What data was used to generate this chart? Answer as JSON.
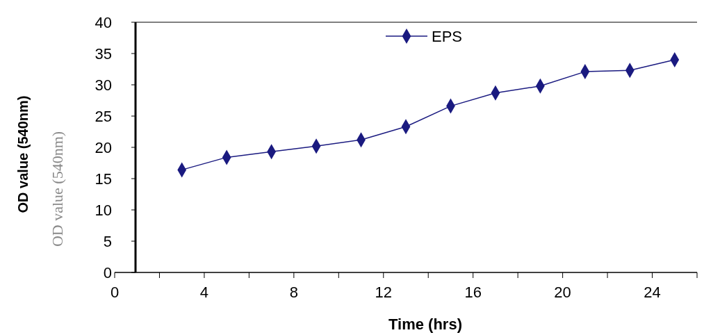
{
  "chart_data": {
    "type": "line",
    "xlabel": "Time (hrs)",
    "ylabel": "OD value (540nm)",
    "annotations": [
      "OD value (540nm)"
    ],
    "x": [
      3,
      5,
      7,
      9,
      11,
      13,
      15,
      17,
      19,
      21,
      23,
      25
    ],
    "series": [
      {
        "name": "EPS",
        "color": "#1a1a80",
        "values": [
          16.4,
          18.4,
          19.3,
          20.2,
          21.2,
          23.3,
          26.6,
          28.7,
          29.8,
          32.1,
          32.3,
          34.0
        ]
      }
    ],
    "xlim": [
      0,
      26
    ],
    "xticks": [
      0,
      {
        "value": 2,
        "label": null
      },
      4,
      {
        "value": 6,
        "label": null
      },
      8,
      {
        "value": 10,
        "label": null
      },
      12,
      {
        "value": 14,
        "label": null
      },
      16,
      {
        "value": 18,
        "label": null
      },
      20,
      {
        "value": 22,
        "label": null
      },
      24,
      {
        "value": 26,
        "label": null
      }
    ],
    "ylim": [
      0,
      40
    ],
    "yticks": [
      0,
      5,
      10,
      15,
      20,
      25,
      30,
      35,
      40
    ],
    "marker": "diamond",
    "legend": "top",
    "grid": false
  }
}
